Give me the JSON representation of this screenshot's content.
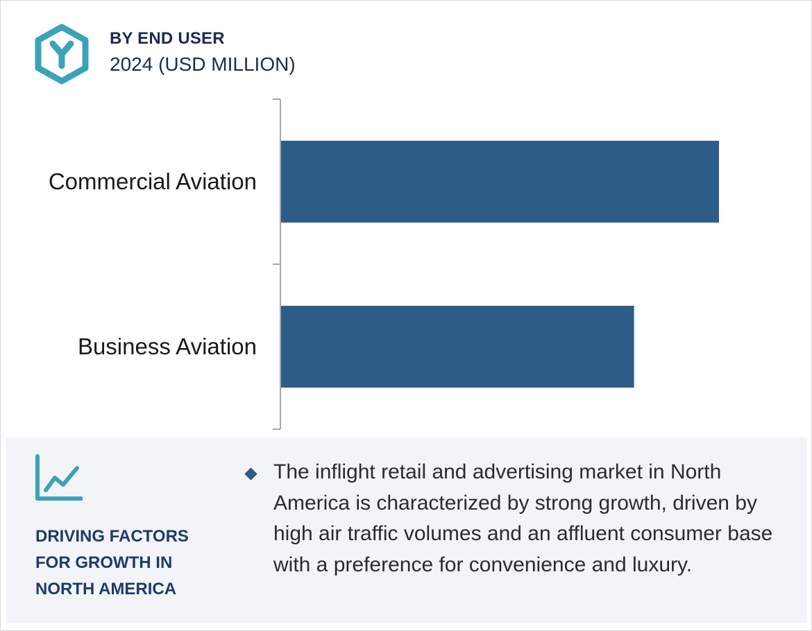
{
  "header": {
    "icon": "hexagon-y-logo-icon",
    "title": "BY END USER",
    "subtitle": "2024 (USD MILLION)"
  },
  "chart_data": {
    "type": "bar",
    "orientation": "horizontal",
    "categories": [
      "Commercial Aviation",
      "Business Aviation"
    ],
    "values": [
      100,
      80.6
    ],
    "xlabel": "",
    "ylabel": "",
    "xlim": [
      0,
      110
    ],
    "grid": false,
    "legend": "none",
    "bar_color": "#2e5c88",
    "note": ""
  },
  "panel": {
    "icon": "trend-line-chart-icon",
    "title": "DRIVING FACTORS\nFOR GROWTH IN\nNORTH AMERICA",
    "bullets": [
      "The inflight retail and advertising market in North America is characterized by strong growth, driven by high air traffic volumes and an affluent consumer base with a preference for convenience and luxury."
    ]
  },
  "colors": {
    "title_navy": "#1e2a52",
    "icon_teal": "#3aa3b8",
    "bar": "#2e5c88",
    "panel_bg": "#f2f4f7"
  }
}
